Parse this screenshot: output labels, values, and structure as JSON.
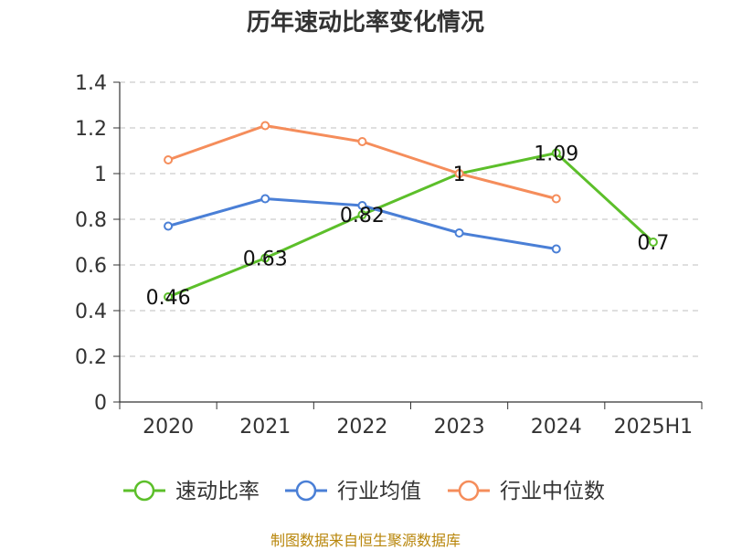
{
  "title": "历年速动比率变化情况",
  "source": "制图数据来自恒生聚源数据库",
  "chart_data": {
    "type": "line",
    "categories": [
      "2020",
      "2021",
      "2022",
      "2023",
      "2024",
      "2025H1"
    ],
    "ylim": [
      0,
      1.4
    ],
    "yticks": [
      0,
      0.2,
      0.4,
      0.6,
      0.8,
      1,
      1.2,
      1.4
    ],
    "ytick_labels": [
      "0",
      "0.2",
      "0.4",
      "0.6",
      "0.8",
      "1",
      "1.2",
      "1.4"
    ],
    "grid": true,
    "legend_position": "bottom",
    "series": [
      {
        "name": "速动比率",
        "color": "#5cbf2a",
        "values": [
          0.46,
          0.63,
          0.82,
          1.0,
          1.09,
          0.7
        ],
        "labels": [
          "0.46",
          "0.63",
          "0.82",
          "1",
          "1.09",
          "0.7"
        ]
      },
      {
        "name": "行业均值",
        "color": "#4a7fd6",
        "values": [
          0.77,
          0.89,
          0.86,
          0.74,
          0.67,
          null
        ]
      },
      {
        "name": "行业中位数",
        "color": "#f58d5b",
        "values": [
          1.06,
          1.21,
          1.14,
          1.0,
          0.89,
          null
        ]
      }
    ]
  }
}
